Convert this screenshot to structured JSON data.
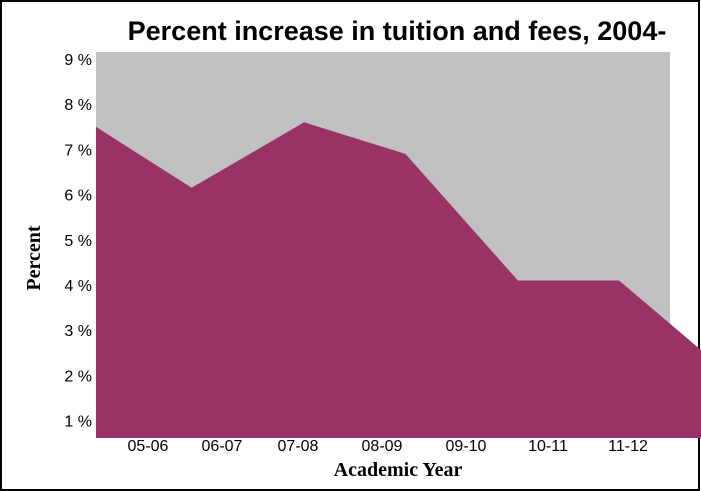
{
  "chart_data": {
    "type": "area",
    "title": "Percent increase in tuition and fees, 2004-",
    "xlabel": "Academic Year",
    "ylabel": "Percent",
    "categories": [
      "05-06",
      "06-07",
      "07-08",
      "08-09",
      "09-10",
      "10-11",
      "11-12"
    ],
    "y_tick_labels": [
      "9 %",
      "8 %",
      "7 %",
      "6 %",
      "5 %",
      "4 %",
      "3 %",
      "2 %",
      "1 %"
    ],
    "ylim": [
      0.6,
      9
    ],
    "grid": false,
    "legend": "none",
    "series": [
      {
        "x": [
          0,
          0.85,
          1.85,
          2.75,
          3.75,
          4.65,
          5.55
        ],
        "y": [
          7.5,
          6.15,
          7.6,
          6.9,
          4.1,
          4.1,
          2.2
        ]
      }
    ],
    "colors": {
      "fill": "#993366",
      "plot_background": "#c0c0c0",
      "border": "#000000"
    }
  }
}
